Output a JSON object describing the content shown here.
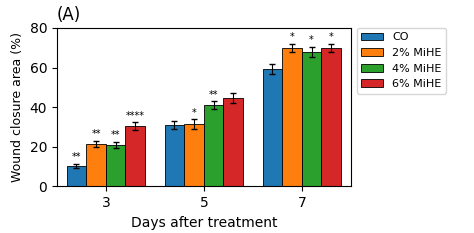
{
  "chart_data": {
    "type": "bar",
    "title": "(A)",
    "x_label": "Days after treatment",
    "y_label": "Wound closure area (%)",
    "categories": [
      "3",
      "5",
      "7"
    ],
    "series": [
      {
        "name": "CO",
        "values": [
          10.5,
          31.0,
          59.5
        ],
        "errors": [
          1.0,
          2.0,
          2.5
        ],
        "annotations": [
          "**",
          null,
          null
        ]
      },
      {
        "name": "2% MiHE",
        "values": [
          21.5,
          31.5,
          70.0
        ],
        "errors": [
          1.5,
          2.5,
          2.0
        ],
        "annotations": [
          "**",
          "*",
          "*"
        ]
      },
      {
        "name": "4% MiHE",
        "values": [
          21.0,
          41.0,
          68.0
        ],
        "errors": [
          1.5,
          2.0,
          2.5
        ],
        "annotations": [
          "**",
          "**",
          "*"
        ]
      },
      {
        "name": "6% MiHE",
        "values": [
          30.5,
          44.5,
          70.0
        ],
        "errors": [
          2.0,
          2.5,
          2.0
        ],
        "annotations": [
          "****",
          null,
          "*"
        ]
      }
    ],
    "ylim": [
      0,
      80
    ],
    "yticks": [
      0,
      20,
      40,
      60,
      80
    ],
    "legend": "upper left"
  }
}
